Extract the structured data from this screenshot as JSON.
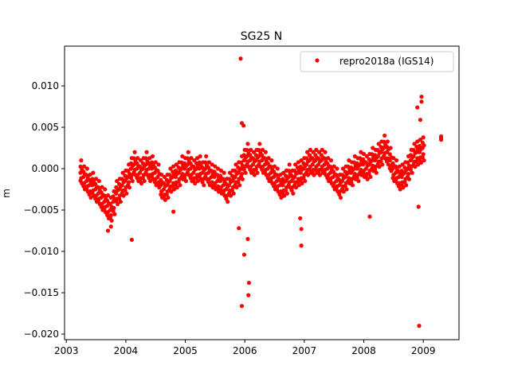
{
  "chart_data": {
    "type": "scatter",
    "title": "SG25 N",
    "xlabel": "",
    "ylabel": "m",
    "xlim": [
      2002.97,
      2009.6
    ],
    "ylim": [
      -0.02067,
      0.01481
    ],
    "grid": false,
    "legend_position": "top-right",
    "xticks": [
      2003,
      2004,
      2005,
      2006,
      2007,
      2008,
      2009
    ],
    "xtick_labels": [
      "2003",
      "2004",
      "2005",
      "2006",
      "2007",
      "2008",
      "2009"
    ],
    "yticks": [
      0.01,
      0.005,
      0.0,
      -0.005,
      -0.01,
      -0.015,
      -0.02
    ],
    "ytick_labels": [
      "0.010",
      "0.005",
      "0.000",
      "−0.005",
      "−0.010",
      "−0.015",
      "−0.020"
    ],
    "series": [
      {
        "name": "repro2018a (IGS14)",
        "color": "#ff0000",
        "spread": 0.0015,
        "x": [
          2003.25,
          2003.3,
          2003.35,
          2003.4,
          2003.45,
          2003.5,
          2003.55,
          2003.6,
          2003.65,
          2003.7,
          2003.75,
          2003.8,
          2003.85,
          2003.9,
          2003.95,
          2004.0,
          2004.05,
          2004.1,
          2004.15,
          2004.2,
          2004.25,
          2004.3,
          2004.35,
          2004.4,
          2004.45,
          2004.5,
          2004.55,
          2004.6,
          2004.65,
          2004.7,
          2004.75,
          2004.8,
          2004.85,
          2004.9,
          2004.95,
          2005.0,
          2005.05,
          2005.1,
          2005.15,
          2005.2,
          2005.25,
          2005.3,
          2005.35,
          2005.4,
          2005.45,
          2005.5,
          2005.55,
          2005.6,
          2005.65,
          2005.7,
          2005.75,
          2005.8,
          2005.85,
          2005.9,
          2005.95,
          2006.0,
          2006.05,
          2006.1,
          2006.15,
          2006.2,
          2006.25,
          2006.3,
          2006.35,
          2006.4,
          2006.45,
          2006.5,
          2006.55,
          2006.6,
          2006.65,
          2006.7,
          2006.75,
          2006.8,
          2006.85,
          2006.9,
          2006.95,
          2007.0,
          2007.05,
          2007.1,
          2007.15,
          2007.2,
          2007.25,
          2007.3,
          2007.35,
          2007.4,
          2007.45,
          2007.5,
          2007.55,
          2007.6,
          2007.65,
          2007.7,
          2007.75,
          2007.8,
          2007.85,
          2007.9,
          2007.95,
          2008.0,
          2008.05,
          2008.1,
          2008.15,
          2008.2,
          2008.25,
          2008.3,
          2008.35,
          2008.4,
          2008.45,
          2008.5,
          2008.55,
          2008.6,
          2008.65,
          2008.7,
          2008.75,
          2008.8,
          2008.85,
          2008.9,
          2008.95,
          2009.0
        ],
        "y": [
          -0.0005,
          -0.001,
          -0.0015,
          -0.002,
          -0.002,
          -0.0025,
          -0.003,
          -0.0035,
          -0.004,
          -0.0045,
          -0.005,
          -0.004,
          -0.003,
          -0.0025,
          -0.002,
          -0.0015,
          -0.001,
          0.0,
          0.0005,
          0.0,
          -0.0005,
          0.0,
          0.0005,
          0.0,
          0.0,
          -0.0005,
          -0.001,
          -0.002,
          -0.0025,
          -0.002,
          -0.0015,
          -0.001,
          -0.001,
          -0.0005,
          0.0,
          0.0,
          0.0005,
          0.0,
          -0.0005,
          0.0,
          0.0,
          -0.0005,
          0.0,
          -0.0005,
          -0.001,
          -0.001,
          -0.0015,
          -0.0015,
          -0.002,
          -0.0025,
          -0.002,
          -0.0015,
          -0.001,
          -0.0005,
          0.0,
          0.001,
          0.0015,
          0.001,
          0.0005,
          0.001,
          0.0015,
          0.001,
          0.0005,
          0.0,
          -0.0005,
          -0.001,
          -0.0015,
          -0.002,
          -0.002,
          -0.0015,
          -0.001,
          -0.0015,
          -0.001,
          -0.0005,
          -0.0005,
          0.0,
          0.0005,
          0.001,
          0.0005,
          0.001,
          0.0005,
          0.001,
          0.0005,
          0.0,
          -0.0005,
          -0.001,
          -0.0015,
          -0.002,
          -0.0015,
          -0.001,
          -0.0005,
          -0.0005,
          0.0,
          0.0,
          0.0005,
          0.0005,
          0.0,
          0.0005,
          0.001,
          0.001,
          0.0015,
          0.002,
          0.0025,
          0.002,
          0.001,
          0.0,
          -0.0005,
          -0.001,
          -0.001,
          -0.0005,
          0.0,
          0.001,
          0.0015,
          0.002,
          0.002,
          0.0025
        ],
        "outliers": [
          [
            2005.93,
            0.0133
          ],
          [
            2005.95,
            0.0055
          ],
          [
            2005.98,
            0.0052
          ],
          [
            2005.9,
            -0.0072
          ],
          [
            2005.95,
            -0.0166
          ],
          [
            2005.99,
            -0.0104
          ],
          [
            2006.05,
            -0.0085
          ],
          [
            2006.07,
            -0.0138
          ],
          [
            2006.06,
            -0.0153
          ],
          [
            2006.95,
            -0.0093
          ],
          [
            2006.95,
            -0.0073
          ],
          [
            2006.93,
            -0.006
          ],
          [
            2004.1,
            -0.0086
          ],
          [
            2008.1,
            -0.0058
          ],
          [
            2008.93,
            -0.019
          ],
          [
            2008.92,
            -0.0046
          ],
          [
            2008.97,
            0.0087
          ],
          [
            2008.97,
            0.0081
          ],
          [
            2008.95,
            0.0059
          ],
          [
            2008.9,
            0.0074
          ],
          [
            2009.3,
            0.0039
          ],
          [
            2009.3,
            0.0035
          ],
          [
            2009.3,
            0.0037
          ],
          [
            2003.7,
            -0.0075
          ],
          [
            2003.75,
            -0.007
          ],
          [
            2004.8,
            -0.0052
          ]
        ]
      }
    ]
  }
}
